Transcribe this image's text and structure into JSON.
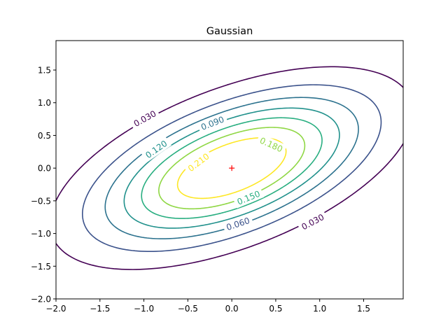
{
  "chart_data": {
    "type": "contour",
    "title": "Gaussian",
    "xlabel": "",
    "ylabel": "",
    "xlim": [
      -2.0,
      1.95
    ],
    "ylim": [
      -2.0,
      1.95
    ],
    "x_ticks": [
      -2.0,
      -1.5,
      -1.0,
      -0.5,
      0.0,
      0.5,
      1.0,
      1.5
    ],
    "y_ticks": [
      -2.0,
      -1.5,
      -1.0,
      -0.5,
      0.0,
      0.5,
      1.0,
      1.5
    ],
    "x_tick_labels": [
      "−2.0",
      "−1.5",
      "−1.0",
      "−0.5",
      "0.0",
      "0.5",
      "1.0",
      "1.5"
    ],
    "y_tick_labels": [
      "−2.0",
      "−1.5",
      "−1.0",
      "−0.5",
      "0.0",
      "0.5",
      "1.0",
      "1.5"
    ],
    "grid": false,
    "center_marker": {
      "x": 0.0,
      "y": 0.0,
      "symbol": "+",
      "color": "#ff0000"
    },
    "levels": [
      {
        "value": 0.03,
        "label": "0.030",
        "color": "#440154",
        "label_positions": [
          [
            -0.99,
            0.76
          ],
          [
            0.92,
            -0.82
          ]
        ]
      },
      {
        "value": 0.06,
        "label": "0.060",
        "color": "#3b528b",
        "label_positions": [
          [
            0.07,
            -0.85
          ]
        ]
      },
      {
        "value": 0.09,
        "label": "0.090",
        "color": "#2c728e",
        "label_positions": [
          [
            -0.22,
            0.69
          ]
        ]
      },
      {
        "value": 0.12,
        "label": "0.120",
        "color": "#21918c",
        "label_positions": [
          [
            -0.86,
            0.29
          ]
        ]
      },
      {
        "value": 0.15,
        "label": "0.150",
        "color": "#28ae80",
        "label_positions": [
          [
            0.19,
            -0.45
          ]
        ]
      },
      {
        "value": 0.18,
        "label": "0.180",
        "color": "#8fd744",
        "label_positions": [
          [
            0.45,
            0.36
          ]
        ]
      },
      {
        "value": 0.21,
        "label": "0.210",
        "color": "#fde725",
        "label_positions": [
          [
            -0.38,
            0.09
          ]
        ]
      }
    ],
    "distribution": {
      "mean": [
        0.0,
        0.0
      ],
      "sigma_x": 1.0,
      "sigma_y": 0.75,
      "correlation": 0.55
    }
  }
}
